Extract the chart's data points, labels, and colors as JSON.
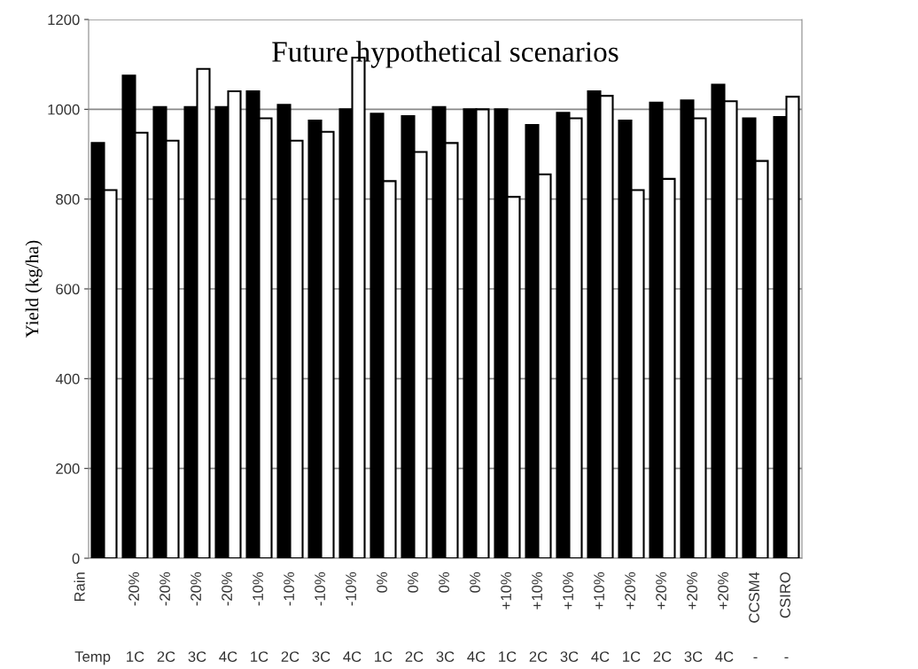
{
  "chart_data": {
    "type": "bar",
    "title": "Future hypothetical scenarios",
    "ylabel": "Yield (kg/ha)",
    "categories": [
      null,
      "-20%\n1C",
      "-20%\n2C",
      "-20%\n3C",
      "-20%\n4C",
      "-10%\n1C",
      "-10%\n2C",
      "-10%\n3C",
      "-10%\n4C",
      "0%\n1C",
      "0%\n2C",
      "0%\n3C",
      "0%\n4C",
      "+10%\n1C",
      "+10%\n2C",
      "+10%\n3C",
      "+10%\n4C",
      "+20%\n1C",
      "+20%\n2C",
      "+20%\n3C",
      "+20%\n4C",
      "CCSM4\n-",
      "CSIRO\n-"
    ],
    "series": [
      {
        "color": "#000000",
        "values": [
          925,
          1075,
          1005,
          1005,
          1005,
          1040,
          1010,
          975,
          1000,
          990,
          985,
          1005,
          1000,
          1000,
          965,
          992,
          1040,
          975,
          1015,
          1020,
          1055,
          980,
          983
        ]
      },
      {
        "color": "#ffffff",
        "values": [
          820,
          948,
          930,
          1090,
          1040,
          980,
          930,
          950,
          1115,
          840,
          905,
          925,
          1000,
          805,
          855,
          980,
          1030,
          820,
          845,
          980,
          1018,
          885,
          1028
        ]
      }
    ],
    "annotations": [
      "Rain",
      "Temp"
    ],
    "ylim": [
      0,
      1200
    ],
    "yticks": [
      0,
      200,
      400,
      600,
      800,
      1000,
      1200
    ],
    "grid": "y"
  }
}
